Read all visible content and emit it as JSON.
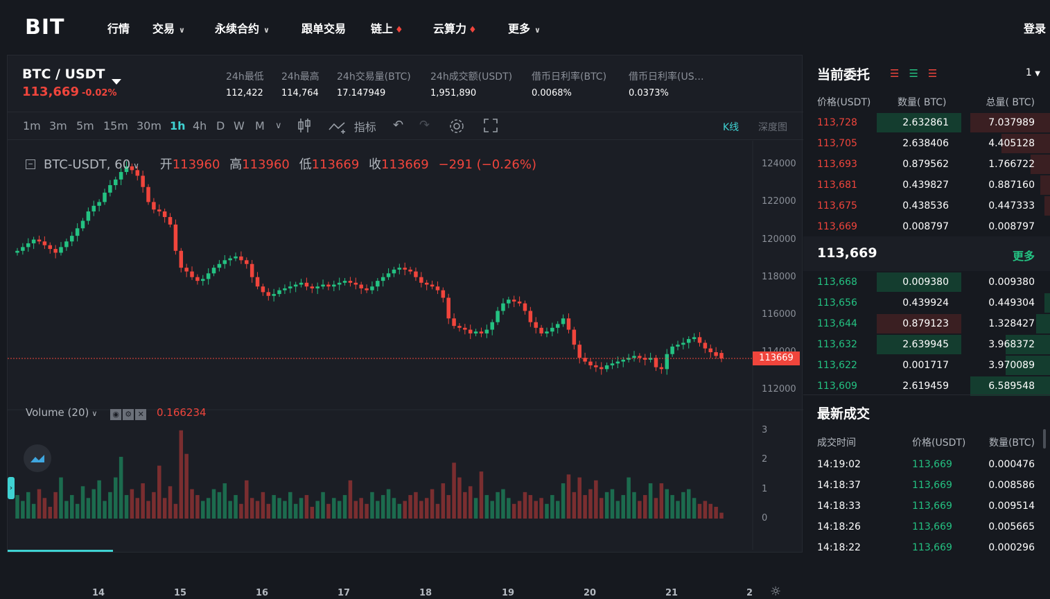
{
  "nav": {
    "logo": "BIT",
    "items": [
      {
        "label": "行情",
        "chevron": false,
        "fire": false
      },
      {
        "label": "交易",
        "chevron": true,
        "fire": false
      },
      {
        "label": "永续合约",
        "chevron": true,
        "fire": false
      },
      {
        "label": "跟单交易",
        "chevron": false,
        "fire": false
      },
      {
        "label": "链上",
        "chevron": false,
        "fire": true
      },
      {
        "label": "云算力",
        "chevron": false,
        "fire": true
      },
      {
        "label": "更多",
        "chevron": true,
        "fire": false
      }
    ],
    "login": "登录"
  },
  "ticker": {
    "pair": "BTC / USDT",
    "price": "113,669",
    "change": "-0.02%",
    "stats": [
      {
        "label": "24h最低",
        "value": "112,422"
      },
      {
        "label": "24h最高",
        "value": "114,764"
      },
      {
        "label": "24h交易量(BTC)",
        "value": "17.147949"
      },
      {
        "label": "24h成交额(USDT)",
        "value": "1,951,890"
      },
      {
        "label": "借币日利率(BTC)",
        "value": "0.0068%"
      },
      {
        "label": "借币日利率(US…",
        "value": "0.0373%"
      }
    ]
  },
  "toolbar": {
    "timeframes": [
      "1m",
      "3m",
      "5m",
      "15m",
      "30m",
      "1h",
      "4h",
      "D",
      "W",
      "M"
    ],
    "active_timeframe": "1h",
    "indicator_label": "指标",
    "view_kline": "K线",
    "view_depth": "深度图"
  },
  "legend": {
    "symbol": "BTC-USDT, 60",
    "open_label": "开",
    "open": "113960",
    "high_label": "高",
    "high": "113960",
    "low_label": "低",
    "low": "113669",
    "close_label": "收",
    "close": "113669",
    "change": "−291 (−0.26%)"
  },
  "volume_legend": {
    "label": "Volume (20)",
    "value": "0.166234"
  },
  "colors": {
    "up": "#24c282",
    "down": "#f0453c",
    "accent": "#3fd2d2"
  },
  "chart_data": {
    "type": "candlestick",
    "price_axis_ticks": [
      "124000",
      "122000",
      "120000",
      "118000",
      "116000",
      "114000",
      "112000"
    ],
    "volume_axis_ticks": [
      "3",
      "2",
      "1",
      "0"
    ],
    "x_ticks": [
      "14",
      "15",
      "16",
      "17",
      "18",
      "19",
      "20",
      "21",
      "2"
    ],
    "ylim": [
      111600,
      124600
    ],
    "current_price_tag": "113669",
    "close_series": [
      119400,
      119600,
      119800,
      120000,
      119900,
      119700,
      119500,
      119300,
      119600,
      119900,
      120200,
      120600,
      121000,
      121500,
      121800,
      122000,
      122500,
      122900,
      123200,
      123600,
      123900,
      123700,
      123400,
      122800,
      122000,
      121600,
      121500,
      121200,
      120800,
      119400,
      118500,
      118300,
      118000,
      117800,
      117900,
      118200,
      118500,
      118700,
      118900,
      119000,
      119100,
      118900,
      118700,
      118000,
      117500,
      117200,
      117000,
      117100,
      117300,
      117400,
      117500,
      117600,
      117700,
      117500,
      117400,
      117500,
      117600,
      117500,
      117600,
      117700,
      117800,
      117700,
      117600,
      117400,
      117300,
      117500,
      117800,
      118000,
      118200,
      118400,
      118500,
      118400,
      118300,
      118000,
      117700,
      117600,
      117500,
      117300,
      116900,
      115800,
      115400,
      115300,
      115200,
      115000,
      115100,
      115000,
      115200,
      115600,
      116200,
      116600,
      116800,
      116700,
      116600,
      116200,
      115600,
      115300,
      115000,
      115100,
      115300,
      115500,
      115800,
      115200,
      114400,
      113700,
      113500,
      113300,
      113200,
      113100,
      113300,
      113400,
      113500,
      113600,
      113700,
      113800,
      113700,
      113600,
      113700,
      113200,
      113100,
      113900,
      114300,
      114400,
      114500,
      114700,
      114800,
      114500,
      114200,
      114000,
      113800,
      113669
    ],
    "open_series": [
      119300,
      119400,
      119600,
      119800,
      120000,
      119900,
      119700,
      119500,
      119300,
      119600,
      119900,
      120200,
      120600,
      121000,
      121500,
      121800,
      122000,
      122500,
      122900,
      123200,
      123600,
      123900,
      123700,
      123400,
      122800,
      122000,
      121600,
      121500,
      121200,
      120800,
      119400,
      118500,
      118300,
      118000,
      117800,
      117900,
      118200,
      118500,
      118700,
      118900,
      119000,
      119100,
      118900,
      118700,
      118000,
      117500,
      117200,
      117000,
      117100,
      117300,
      117400,
      117500,
      117600,
      117700,
      117500,
      117400,
      117500,
      117600,
      117500,
      117600,
      117700,
      117800,
      117700,
      117600,
      117400,
      117300,
      117500,
      117800,
      118000,
      118200,
      118400,
      118500,
      118400,
      118300,
      118000,
      117700,
      117600,
      117500,
      117300,
      116900,
      115800,
      115400,
      115300,
      115200,
      115000,
      115100,
      115000,
      115200,
      115600,
      116200,
      116600,
      116800,
      116700,
      116600,
      116200,
      115600,
      115300,
      115000,
      115100,
      115300,
      115500,
      115800,
      115200,
      114400,
      113700,
      113500,
      113300,
      113200,
      113100,
      113300,
      113400,
      113500,
      113600,
      113700,
      113800,
      113700,
      113600,
      113700,
      113200,
      113100,
      113900,
      114300,
      114400,
      114500,
      114700,
      114800,
      114500,
      114200,
      114000,
      113960
    ],
    "volume_series": [
      0.8,
      0.6,
      0.9,
      0.5,
      1.0,
      0.7,
      0.4,
      0.9,
      1.4,
      0.6,
      0.8,
      0.5,
      1.1,
      0.7,
      1.0,
      1.3,
      0.6,
      0.9,
      1.4,
      2.1,
      0.8,
      1.0,
      0.7,
      1.2,
      0.6,
      0.9,
      1.8,
      0.7,
      1.1,
      0.5,
      3.0,
      2.2,
      1.0,
      0.8,
      0.6,
      0.7,
      1.0,
      0.9,
      1.2,
      0.6,
      0.8,
      0.5,
      1.3,
      0.7,
      0.6,
      0.9,
      0.5,
      0.8,
      0.7,
      0.6,
      0.9,
      0.5,
      0.7,
      0.8,
      0.4,
      0.6,
      0.9,
      0.5,
      0.7,
      0.6,
      0.8,
      1.3,
      0.6,
      0.7,
      0.5,
      0.9,
      0.6,
      0.8,
      1.0,
      0.7,
      0.5,
      0.6,
      0.8,
      0.9,
      0.6,
      0.7,
      1.0,
      0.5,
      1.2,
      0.8,
      1.9,
      1.4,
      0.9,
      1.1,
      0.7,
      1.6,
      0.8,
      0.6,
      0.9,
      1.0,
      0.7,
      0.5,
      0.6,
      0.9,
      0.8,
      0.6,
      0.7,
      0.5,
      0.8,
      0.6,
      1.2,
      1.5,
      0.9,
      1.4,
      0.8,
      1.0,
      1.3,
      0.7,
      0.9,
      1.0,
      0.6,
      0.8,
      1.4,
      0.9,
      0.6,
      0.8,
      1.2,
      0.7,
      1.2,
      1.0,
      0.8,
      0.6,
      0.9,
      1.0,
      0.7,
      0.5,
      0.6,
      0.5,
      0.4,
      0.2
    ]
  },
  "orderbook": {
    "title": "当前委托",
    "depth": "1",
    "headers": [
      "价格(USDT)",
      "数量( BTC)",
      "总量( BTC)"
    ],
    "asks": [
      {
        "price": "113,728",
        "qty": "2.632861",
        "total": "7.037989",
        "qfill": 1.0,
        "tfill": 0.9
      },
      {
        "price": "113,705",
        "qty": "2.638406",
        "total": "4.405128",
        "qfill": 0.0,
        "tfill": 0.55
      },
      {
        "price": "113,693",
        "qty": "0.879562",
        "total": "1.766722",
        "qfill": 0.0,
        "tfill": 0.22
      },
      {
        "price": "113,681",
        "qty": "0.439827",
        "total": "0.887160",
        "qfill": 0.0,
        "tfill": 0.11
      },
      {
        "price": "113,675",
        "qty": "0.438536",
        "total": "0.447333",
        "qfill": 0.0,
        "tfill": 0.06
      },
      {
        "price": "113,669",
        "qty": "0.008797",
        "total": "0.008797",
        "qfill": 0.0,
        "tfill": 0.0
      }
    ],
    "mid_price": "113,669",
    "more": "更多",
    "bids": [
      {
        "price": "113,668",
        "qty": "0.009380",
        "total": "0.009380",
        "qfill": 1.0,
        "tfill": 0.0
      },
      {
        "price": "113,656",
        "qty": "0.439924",
        "total": "0.449304",
        "qfill": 0.0,
        "tfill": 0.06
      },
      {
        "price": "113,644",
        "qty": "0.879123",
        "total": "1.328427",
        "qfill": 1.0,
        "tfill": 0.16
      },
      {
        "price": "113,632",
        "qty": "2.639945",
        "total": "3.968372",
        "qfill": 1.0,
        "tfill": 0.5
      },
      {
        "price": "113,622",
        "qty": "0.001717",
        "total": "3.970089",
        "qfill": 0.0,
        "tfill": 0.5
      },
      {
        "price": "113,609",
        "qty": "2.619459",
        "total": "6.589548",
        "qfill": 0.0,
        "tfill": 0.9
      }
    ]
  },
  "trades": {
    "title": "最新成交",
    "headers": [
      "成交时间",
      "价格(USDT)",
      "数量(BTC)"
    ],
    "rows": [
      {
        "time": "14:19:02",
        "price": "113,669",
        "qty": "0.000476"
      },
      {
        "time": "14:18:37",
        "price": "113,669",
        "qty": "0.008586"
      },
      {
        "time": "14:18:33",
        "price": "113,669",
        "qty": "0.009514"
      },
      {
        "time": "14:18:26",
        "price": "113,669",
        "qty": "0.005665"
      },
      {
        "time": "14:18:22",
        "price": "113,669",
        "qty": "0.000296"
      }
    ]
  }
}
